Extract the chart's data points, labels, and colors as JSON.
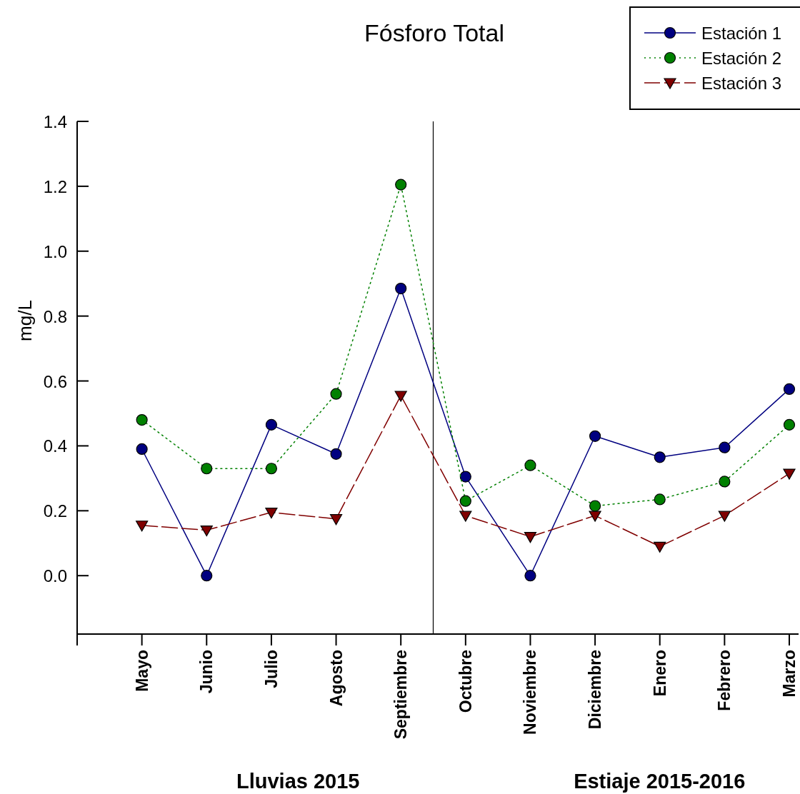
{
  "chart_data": {
    "type": "line",
    "title": "Fósforo Total",
    "ylabel": "mg/L",
    "categories": [
      null,
      "Mayo",
      "Junio",
      "Julio",
      "Agosto",
      "Septiembre",
      "Octubre",
      "Noviembre",
      "Diciembre",
      "Enero",
      "Febrero",
      "Marzo"
    ],
    "ylim": [
      -0.18,
      1.4
    ],
    "yticks": [
      {
        "value": 0,
        "label": "0.0"
      },
      0.2,
      0.4,
      0.6,
      0.8,
      {
        "value": 1,
        "label": "1.0"
      },
      1.2,
      1.4
    ],
    "series": [
      {
        "name": "Estación 1",
        "color": "#000080",
        "marker": "circle",
        "line_style": "solid",
        "values": [
          null,
          0.39,
          0.0,
          0.465,
          0.375,
          0.885,
          0.305,
          0.0,
          0.43,
          0.365,
          0.395,
          0.575
        ]
      },
      {
        "name": "Estación 2",
        "color": "#008000",
        "marker": "circle",
        "line_style": "dotted",
        "values": [
          null,
          0.48,
          0.33,
          0.33,
          0.56,
          1.205,
          0.23,
          0.34,
          0.215,
          0.235,
          0.29,
          0.465
        ]
      },
      {
        "name": "Estación 3",
        "color": "#800000",
        "marker": "triangle",
        "line_style": "dashed",
        "values": [
          null,
          0.155,
          0.14,
          0.195,
          0.175,
          0.555,
          0.185,
          0.12,
          0.185,
          0.09,
          0.185,
          0.315
        ]
      }
    ],
    "annotations": [
      "Lluvias 2015",
      "Estiaje 2015-2016"
    ],
    "legend": "top right"
  }
}
